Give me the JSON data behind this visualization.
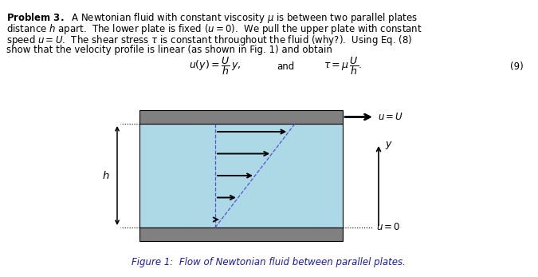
{
  "plate_color": "#808080",
  "fluid_color": "#add8e6",
  "background": "#ffffff",
  "text_color": "#000000",
  "caption_color": "#1a1aaa",
  "arrow_color": "#000000",
  "dash_color": "#5555cc",
  "figure_caption": "Figure 1:  Flow of Newtonian fluid between parallel plates."
}
